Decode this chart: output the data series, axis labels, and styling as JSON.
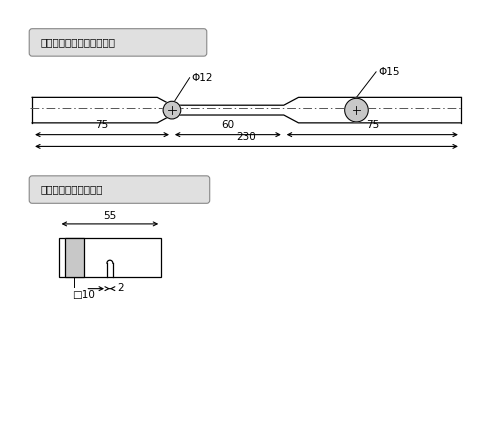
{
  "title1": "引張試験片、ねじり試験片",
  "title2": "シャルビー衝撃試験片",
  "bg_color": "#ffffff",
  "label_box_color": "#e0e0e0",
  "circle_color": "#c8c8c8",
  "phi12": "Φ12",
  "phi15": "Φ15",
  "dim_10": "□10",
  "line_color": "#000000"
}
